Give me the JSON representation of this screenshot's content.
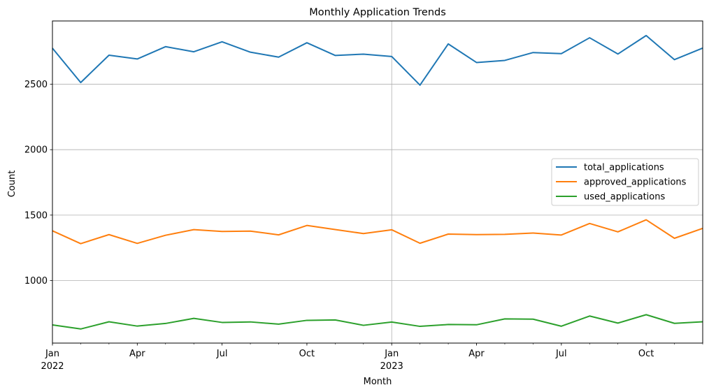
{
  "chart_data": {
    "type": "line",
    "title": "Monthly Application Trends",
    "xlabel": "Month",
    "ylabel": "Count",
    "x": [
      "2022-01",
      "2022-02",
      "2022-03",
      "2022-04",
      "2022-05",
      "2022-06",
      "2022-07",
      "2022-08",
      "2022-09",
      "2022-10",
      "2022-11",
      "2022-12",
      "2023-01",
      "2023-02",
      "2023-03",
      "2023-04",
      "2023-05",
      "2023-06",
      "2023-07",
      "2023-08",
      "2023-09",
      "2023-10",
      "2023-11",
      "2023-12"
    ],
    "xlim": [
      "2022-01",
      "2023-12"
    ],
    "ylim": [
      1000,
      3000
    ],
    "yticks": [
      1000,
      1500,
      2000,
      2500
    ],
    "xticks": [
      {
        "x": "2022-01",
        "label": "Jan",
        "sublabel": "2022"
      },
      {
        "x": "2022-04",
        "label": "Apr"
      },
      {
        "x": "2022-07",
        "label": "Jul"
      },
      {
        "x": "2022-10",
        "label": "Oct"
      },
      {
        "x": "2023-01",
        "label": "Jan",
        "sublabel": "2023"
      },
      {
        "x": "2023-04",
        "label": "Apr"
      },
      {
        "x": "2023-07",
        "label": "Jul"
      },
      {
        "x": "2023-10",
        "label": "Oct"
      }
    ],
    "grid": true,
    "legend_position": "center-right",
    "series": [
      {
        "name": "total_applications",
        "color": "#1f77b4",
        "values": [
          2775,
          2513,
          2722,
          2693,
          2787,
          2748,
          2824,
          2745,
          2707,
          2817,
          2720,
          2730,
          2712,
          2493,
          2808,
          2666,
          2682,
          2742,
          2734,
          2855,
          2731,
          2872,
          2688,
          2776
        ]
      },
      {
        "name": "approved_applications",
        "color": "#ff7f0e",
        "values": [
          1380,
          1282,
          1351,
          1284,
          1346,
          1389,
          1375,
          1378,
          1349,
          1421,
          1390,
          1359,
          1388,
          1285,
          1355,
          1351,
          1353,
          1363,
          1348,
          1436,
          1372,
          1464,
          1323,
          1399
        ]
      },
      {
        "name": "used_applications",
        "color": "#2ca02c",
        "values": [
          661,
          630,
          685,
          652,
          672,
          711,
          680,
          684,
          667,
          696,
          699,
          658,
          683,
          650,
          664,
          662,
          707,
          705,
          651,
          729,
          675,
          739,
          673,
          685
        ]
      }
    ]
  }
}
